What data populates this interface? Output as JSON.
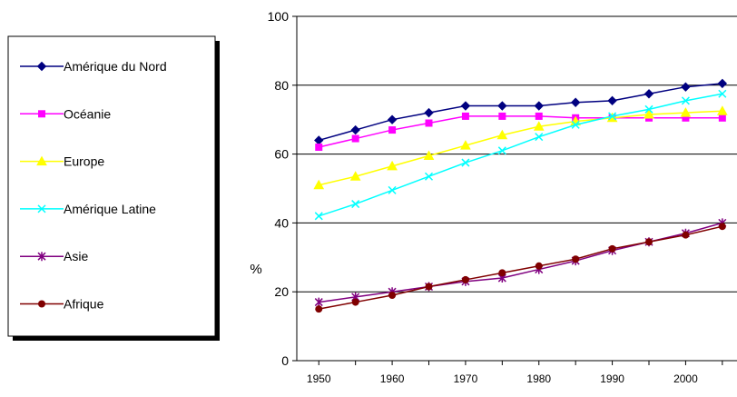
{
  "chart_data": {
    "type": "line",
    "title": "",
    "xlabel": "",
    "ylabel": "%",
    "x": [
      1950,
      1955,
      1960,
      1965,
      1970,
      1975,
      1980,
      1985,
      1990,
      1995,
      2000,
      2005
    ],
    "x_ticks": [
      1950,
      1960,
      1970,
      1980,
      1990,
      2000
    ],
    "y_ticks": [
      0,
      20,
      40,
      60,
      80,
      100
    ],
    "xlim": [
      1947,
      2007
    ],
    "ylim": [
      0,
      100
    ],
    "grid": "horizontal",
    "legend_position": "left",
    "series": [
      {
        "name": "Amérique du Nord",
        "color": "#000080",
        "marker": "diamond",
        "values": [
          64,
          67,
          70,
          72,
          74,
          74,
          74,
          75,
          75.5,
          77.5,
          79.5,
          80.5
        ]
      },
      {
        "name": "Océanie",
        "color": "#FF00FF",
        "marker": "square",
        "values": [
          62,
          64.5,
          67,
          69,
          71,
          71,
          71,
          70.5,
          70.5,
          70.5,
          70.5,
          70.5
        ]
      },
      {
        "name": "Europe",
        "color": "#FFFF00",
        "marker": "triangle",
        "values": [
          51,
          53.5,
          56.5,
          59.5,
          62.5,
          65.5,
          68,
          69.5,
          70.5,
          71.5,
          72,
          72.5
        ]
      },
      {
        "name": "Amérique Latine",
        "color": "#00FFFF",
        "marker": "x",
        "values": [
          42,
          45.5,
          49.5,
          53.5,
          57.5,
          61,
          65,
          68.5,
          71,
          73,
          75.5,
          77.5
        ]
      },
      {
        "name": "Asie",
        "color": "#800080",
        "marker": "star",
        "values": [
          17,
          18.5,
          20,
          21.5,
          23,
          24,
          26.5,
          29,
          32,
          34.5,
          37,
          40
        ]
      },
      {
        "name": "Afrique",
        "color": "#800000",
        "marker": "circle",
        "values": [
          15,
          17,
          19,
          21.5,
          23.5,
          25.5,
          27.5,
          29.5,
          32.5,
          34.5,
          36.5,
          39
        ]
      }
    ]
  }
}
